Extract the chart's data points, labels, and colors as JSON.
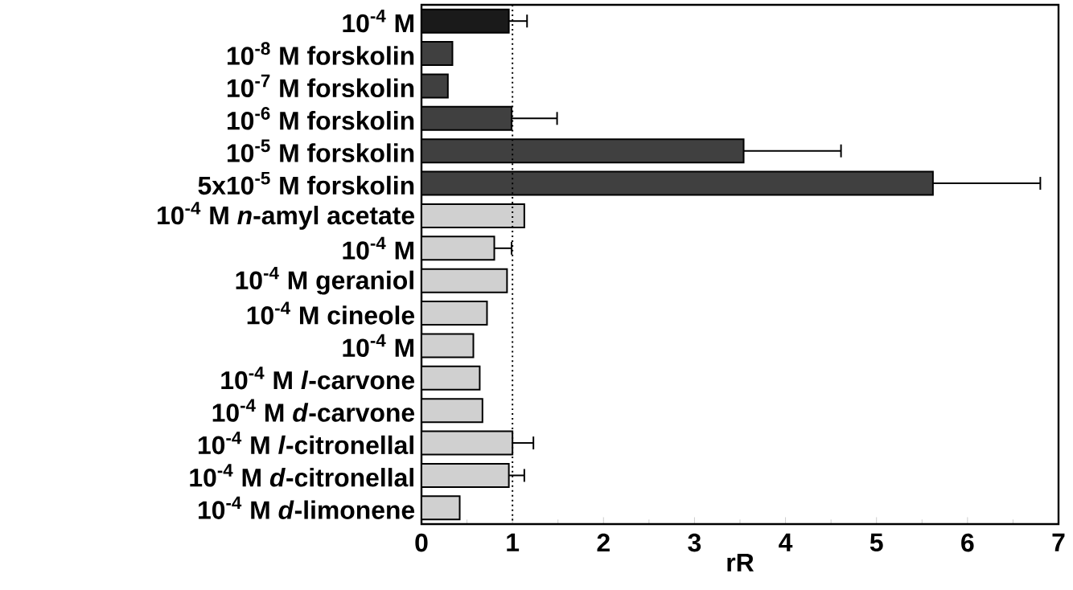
{
  "chart_data": {
    "type": "bar",
    "orientation": "horizontal",
    "xlabel": "rR",
    "categories": [
      "10$^{-4}$ M",
      "10$^{-8}$ M forskolin",
      "10$^{-7}$ M forskolin",
      "10$^{-6}$ M forskolin",
      "10$^{-5}$ M forskolin",
      "5x10$^{-5}$ M forskolin",
      "10$^{-4}$ M *n*-amyl acetate",
      "10$^{-4}$ M",
      "10$^{-4}$ M geraniol",
      "10$^{-4}$ M cineole",
      "10$^{-4}$ M",
      "10$^{-4}$ M *l*-carvone",
      "10$^{-4}$ M *d*-carvone",
      "10$^{-4}$ M *l*-citronellal",
      "10$^{-4}$ M *d*-citronellal",
      "10$^{-4}$ M *d*-limonene"
    ],
    "values": [
      0.96,
      0.34,
      0.29,
      0.99,
      3.54,
      5.62,
      1.13,
      0.8,
      0.94,
      0.72,
      0.57,
      0.64,
      0.67,
      1.0,
      0.96,
      0.42
    ],
    "errors": [
      [
        0.96,
        1.16
      ],
      null,
      null,
      [
        0.99,
        1.49
      ],
      [
        3.54,
        4.61
      ],
      [
        5.62,
        6.8
      ],
      null,
      [
        0.8,
        0.99
      ],
      null,
      null,
      null,
      null,
      null,
      [
        1.0,
        1.23
      ],
      [
        0.96,
        1.13
      ],
      null
    ],
    "colors": [
      "#1a1a1a",
      "#404040",
      "#404040",
      "#404040",
      "#404040",
      "#404040",
      "#d0d0d0",
      "#d0d0d0",
      "#d0d0d0",
      "#d0d0d0",
      "#d0d0d0",
      "#d0d0d0",
      "#d0d0d0",
      "#d0d0d0",
      "#d0d0d0",
      "#d0d0d0"
    ],
    "xlim": [
      0,
      7
    ],
    "xticks": [
      0,
      1,
      2,
      3,
      4,
      5,
      6,
      7
    ],
    "ref_lines": [
      {
        "axis": "x",
        "value": 1,
        "line_style": "dotted"
      }
    ]
  }
}
